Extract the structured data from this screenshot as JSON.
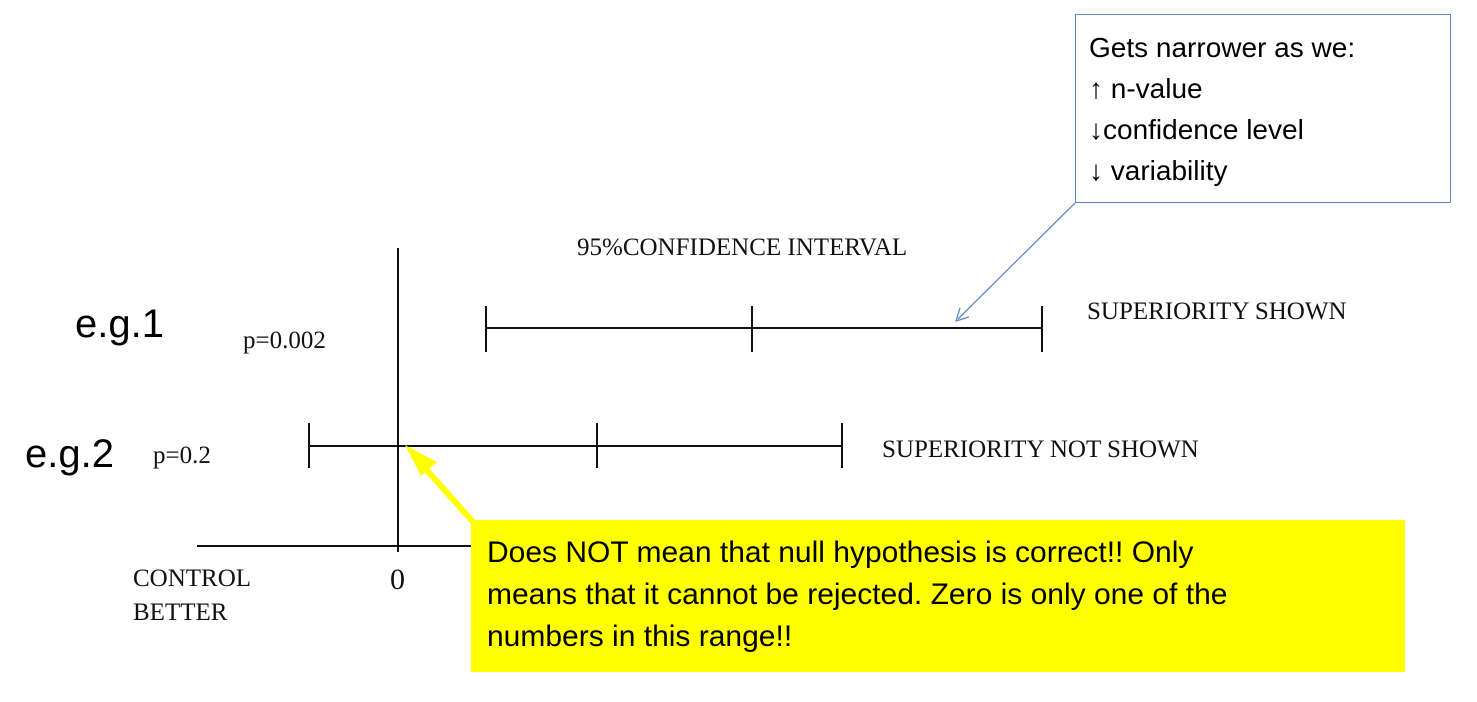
{
  "ci_heading": "95%CONFIDENCE INTERVAL",
  "examples": [
    {
      "label": "e.g.1",
      "p_value": "p=0.002",
      "outcome": "SUPERIORITY SHOWN"
    },
    {
      "label": "e.g.2",
      "p_value": "p=0.2",
      "outcome": "SUPERIORITY NOT SHOWN"
    }
  ],
  "axis": {
    "zero_label": "0",
    "left_label_line1": "CONTROL",
    "left_label_line2": "BETTER"
  },
  "callout": {
    "title": "Gets narrower as we:",
    "items": [
      "↑ n-value",
      "↓confidence level",
      "↓ variability"
    ]
  },
  "note": {
    "lines": [
      "Does NOT mean that null hypothesis is correct!! Only",
      "means that it cannot be rejected. Zero is only one of the",
      "numbers in this range!!"
    ]
  },
  "colors": {
    "note_background": "#ffff00",
    "arrow_yellow": "#ffff00",
    "callout_border": "#5b8ac5"
  }
}
